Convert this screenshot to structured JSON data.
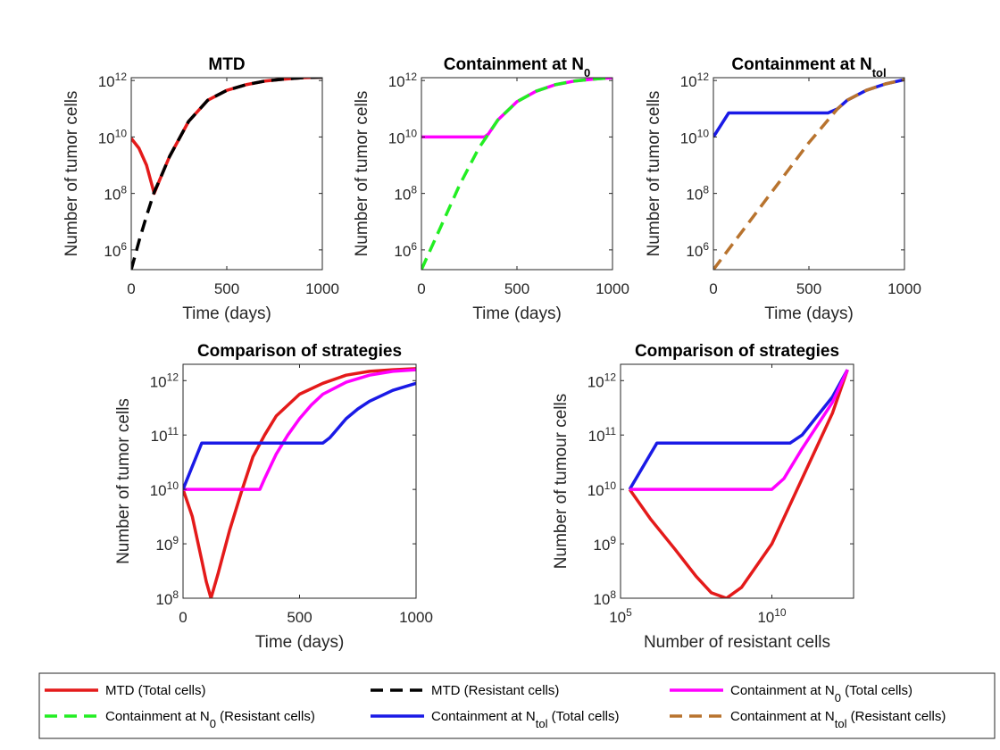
{
  "chart_data": [
    {
      "id": "p1",
      "type": "line",
      "title": "MTD",
      "title_sub": "",
      "xlabel": "Time (days)",
      "ylabel": "Number of tumor cells",
      "xlim": [
        0,
        1000
      ],
      "ylim_log10": [
        5.3,
        12.1
      ],
      "yscale": "log",
      "xticks": [
        "0",
        "500",
        "1000"
      ],
      "yticks": [
        {
          "base": "10",
          "exp": "6"
        },
        {
          "base": "10",
          "exp": "8"
        },
        {
          "base": "10",
          "exp": "10"
        },
        {
          "base": "10",
          "exp": "12"
        }
      ],
      "series": [
        {
          "name": "MTD (Total cells)",
          "color": "#e41a1a",
          "dash": "solid",
          "x": [
            0,
            40,
            80,
            100,
            120,
            150,
            200,
            300,
            400,
            500,
            600,
            700,
            800,
            900,
            1000
          ],
          "log10y": [
            9.95,
            9.6,
            9.0,
            8.5,
            8.0,
            8.5,
            9.3,
            10.55,
            11.3,
            11.65,
            11.85,
            11.98,
            12.05,
            12.1,
            12.12
          ]
        },
        {
          "name": "MTD (Resistant cells)",
          "color": "#000000",
          "dash": "dashed",
          "x": [
            0,
            40,
            80,
            120,
            150,
            200,
            300,
            400,
            500,
            600,
            700,
            800,
            900,
            1000
          ],
          "log10y": [
            5.3,
            6.3,
            7.2,
            8.05,
            8.5,
            9.3,
            10.55,
            11.3,
            11.65,
            11.85,
            11.98,
            12.05,
            12.1,
            12.12
          ]
        }
      ]
    },
    {
      "id": "p2",
      "type": "line",
      "title": "Containment at N",
      "title_sub": "0",
      "xlabel": "Time (days)",
      "ylabel": "Number of tumor cells",
      "xlim": [
        0,
        1000
      ],
      "ylim_log10": [
        5.3,
        12.1
      ],
      "yscale": "log",
      "xticks": [
        "0",
        "500",
        "1000"
      ],
      "yticks": [
        {
          "base": "10",
          "exp": "6"
        },
        {
          "base": "10",
          "exp": "8"
        },
        {
          "base": "10",
          "exp": "10"
        },
        {
          "base": "10",
          "exp": "12"
        }
      ],
      "series": [
        {
          "name": "Containment at N0 (Total cells)",
          "color": "#ff00ff",
          "dash": "solid",
          "x": [
            0,
            330,
            350,
            400,
            500,
            600,
            700,
            800,
            900,
            1000
          ],
          "log10y": [
            10.0,
            10.0,
            10.1,
            10.6,
            11.25,
            11.62,
            11.85,
            11.98,
            12.05,
            12.1
          ]
        },
        {
          "name": "Containment at N0 (Resistant cells)",
          "color": "#22ee22",
          "dash": "dashed",
          "x": [
            0,
            100,
            200,
            300,
            350,
            400,
            500,
            600,
            700,
            800,
            900,
            1000
          ],
          "log10y": [
            5.3,
            6.8,
            8.3,
            9.6,
            10.1,
            10.6,
            11.25,
            11.62,
            11.85,
            11.98,
            12.05,
            12.1
          ]
        }
      ]
    },
    {
      "id": "p3",
      "type": "line",
      "title": "Containment at N",
      "title_sub": "tol",
      "xlabel": "Time (days)",
      "ylabel": "Number of tumor cells",
      "xlim": [
        0,
        1000
      ],
      "ylim_log10": [
        5.3,
        12.1
      ],
      "yscale": "log",
      "xticks": [
        "0",
        "500",
        "1000"
      ],
      "yticks": [
        {
          "base": "10",
          "exp": "6"
        },
        {
          "base": "10",
          "exp": "8"
        },
        {
          "base": "10",
          "exp": "10"
        },
        {
          "base": "10",
          "exp": "12"
        }
      ],
      "series": [
        {
          "name": "Containment at Ntol (Total cells)",
          "color": "#1a1ae6",
          "dash": "solid",
          "x": [
            0,
            80,
            600,
            650,
            700,
            800,
            900,
            1000
          ],
          "log10y": [
            10.0,
            10.85,
            10.85,
            11.0,
            11.3,
            11.65,
            11.88,
            12.03
          ]
        },
        {
          "name": "Containment at Ntol (Resistant cells)",
          "color": "#b8732e",
          "dash": "dashed",
          "x": [
            0,
            100,
            200,
            300,
            400,
            500,
            600,
            650,
            700,
            800,
            900,
            1000
          ],
          "log10y": [
            5.3,
            6.2,
            7.1,
            8.0,
            8.9,
            9.8,
            10.6,
            11.0,
            11.3,
            11.65,
            11.88,
            12.03
          ]
        }
      ]
    },
    {
      "id": "p4",
      "type": "line",
      "title": "Comparison of strategies",
      "title_sub": "",
      "xlabel": "Time (days)",
      "ylabel": "Number of tumor cells",
      "xlim": [
        0,
        1000
      ],
      "ylim_log10": [
        8,
        12.3
      ],
      "yscale": "log",
      "xticks": [
        "0",
        "500",
        "1000"
      ],
      "yticks": [
        {
          "base": "10",
          "exp": "8"
        },
        {
          "base": "10",
          "exp": "9"
        },
        {
          "base": "10",
          "exp": "10"
        },
        {
          "base": "10",
          "exp": "11"
        },
        {
          "base": "10",
          "exp": "12"
        }
      ],
      "series": [
        {
          "name": "MTD (Total cells)",
          "color": "#e41a1a",
          "dash": "solid",
          "x": [
            0,
            40,
            80,
            100,
            120,
            150,
            200,
            250,
            300,
            350,
            400,
            500,
            600,
            700,
            800,
            900,
            1000
          ],
          "log10y": [
            10.0,
            9.5,
            8.7,
            8.3,
            8.0,
            8.45,
            9.25,
            9.95,
            10.6,
            11.0,
            11.35,
            11.75,
            11.95,
            12.1,
            12.17,
            12.2,
            12.22
          ]
        },
        {
          "name": "Containment at N0 (Total cells)",
          "color": "#ff00ff",
          "dash": "solid",
          "x": [
            0,
            330,
            350,
            400,
            450,
            500,
            550,
            600,
            700,
            800,
            900,
            1000
          ],
          "log10y": [
            10.0,
            10.0,
            10.2,
            10.65,
            11.0,
            11.3,
            11.55,
            11.75,
            11.97,
            12.1,
            12.17,
            12.2
          ]
        },
        {
          "name": "Containment at Ntol (Total cells)",
          "color": "#1a1ae6",
          "dash": "solid",
          "x": [
            0,
            80,
            600,
            630,
            650,
            700,
            750,
            800,
            900,
            1000
          ],
          "log10y": [
            10.0,
            10.85,
            10.85,
            10.95,
            11.05,
            11.3,
            11.48,
            11.62,
            11.82,
            11.95
          ]
        }
      ]
    },
    {
      "id": "p5",
      "type": "line",
      "title": "Comparison of strategies",
      "title_sub": "",
      "xlabel": "Number of resistant cells",
      "ylabel": "Number of tumour cells",
      "xlim_log10": [
        5,
        12.7
      ],
      "ylim_log10": [
        8,
        12.3
      ],
      "xscale": "log",
      "yscale": "log",
      "xticks": [
        {
          "base": "10",
          "exp": "5"
        },
        {
          "base": "10",
          "exp": "10"
        }
      ],
      "yticks": [
        {
          "base": "10",
          "exp": "8"
        },
        {
          "base": "10",
          "exp": "9"
        },
        {
          "base": "10",
          "exp": "10"
        },
        {
          "base": "10",
          "exp": "11"
        },
        {
          "base": "10",
          "exp": "12"
        }
      ],
      "series": [
        {
          "name": "MTD (Total cells)",
          "color": "#e41a1a",
          "dash": "solid",
          "log10x": [
            5.3,
            6.0,
            6.8,
            7.5,
            8.0,
            8.5,
            9.0,
            10.0,
            11.0,
            12.0,
            12.5
          ],
          "log10y": [
            10.0,
            9.45,
            8.9,
            8.4,
            8.1,
            8.0,
            8.2,
            9.0,
            10.2,
            11.4,
            12.2
          ]
        },
        {
          "name": "Containment at Ntol (Total cells)",
          "color": "#1a1ae6",
          "dash": "solid",
          "log10x": [
            5.3,
            6.2,
            10.6,
            11.0,
            12.0,
            12.5
          ],
          "log10y": [
            10.0,
            10.85,
            10.85,
            11.0,
            11.7,
            12.2
          ]
        },
        {
          "name": "Containment at N0 (Total cells)",
          "color": "#ff00ff",
          "dash": "solid",
          "log10x": [
            5.3,
            10.0,
            10.4,
            11.0,
            12.0,
            12.5
          ],
          "log10y": [
            10.0,
            10.0,
            10.2,
            10.75,
            11.6,
            12.2
          ]
        }
      ]
    }
  ],
  "legend": {
    "placement": "bottom",
    "entries": [
      {
        "text": "MTD (Total cells)",
        "sub": "",
        "rest": "",
        "color": "#e41a1a",
        "dash": "solid"
      },
      {
        "text": "MTD (Resistant cells)",
        "sub": "",
        "rest": "",
        "color": "#000000",
        "dash": "dashed"
      },
      {
        "text": "Containment at N",
        "sub": "0",
        "rest": " (Total cells)",
        "color": "#ff00ff",
        "dash": "solid"
      },
      {
        "text": "Containment at N",
        "sub": "0",
        "rest": " (Resistant cells)",
        "color": "#22ee22",
        "dash": "dashed"
      },
      {
        "text": "Containment at N",
        "sub": "tol",
        "rest": " (Total cells)",
        "color": "#1a1ae6",
        "dash": "solid"
      },
      {
        "text": "Containment at N",
        "sub": "tol",
        "rest": " (Resistant cells)",
        "color": "#b8732e",
        "dash": "dashed"
      }
    ]
  }
}
